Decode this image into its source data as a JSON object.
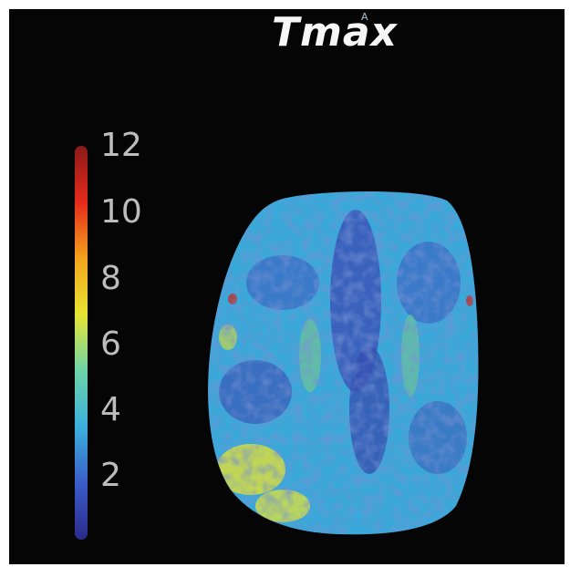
{
  "title": "Tmax",
  "orientation_marker": "A",
  "colorbar": {
    "ticks": [
      "12",
      "10",
      "8",
      "6",
      "4",
      "2"
    ],
    "range": [
      0,
      12
    ],
    "colormap": "jet",
    "colors": [
      "#2a2a8a",
      "#3b5cc8",
      "#3bb0dc",
      "#6ed3a8",
      "#e6e632",
      "#f3a21d",
      "#e52a1a",
      "#8a1a1a"
    ]
  },
  "map": {
    "background": "#050505",
    "tissue_base": "#3aa8d8",
    "tissue_dark": "#3650b0",
    "tissue_green": "#7cc88a",
    "tissue_yellow": "#e2e23a",
    "tissue_red": "#c0302a"
  }
}
